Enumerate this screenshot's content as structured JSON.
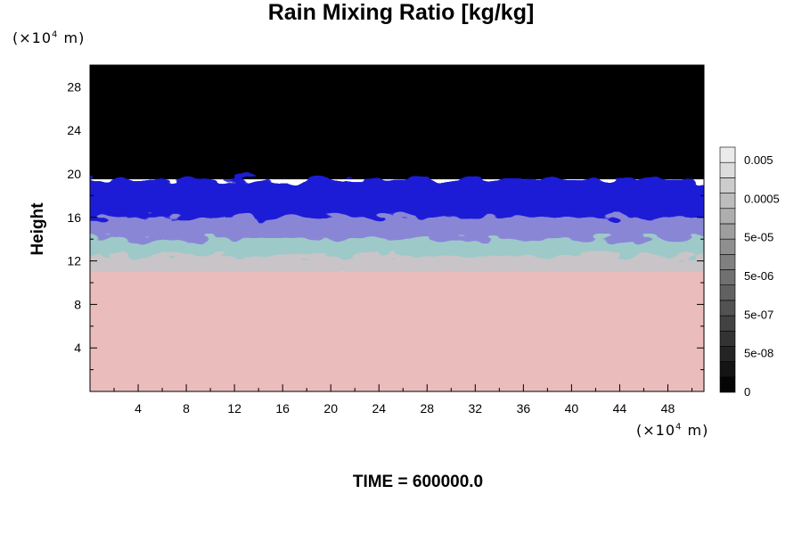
{
  "chart_data": {
    "type": "heatmap",
    "title": "Rain Mixing Ratio [kg/kg]",
    "xlabel": "",
    "ylabel": "Height",
    "x_unit": "(×10",
    "x_unit_exp": "4",
    "x_unit_tail": " m)",
    "y_unit": "(×10",
    "y_unit_exp": "4",
    "y_unit_tail": " m)",
    "xlim": [
      0,
      51
    ],
    "ylim": [
      0,
      30
    ],
    "xticks": [
      4,
      8,
      12,
      16,
      20,
      24,
      28,
      32,
      36,
      40,
      44,
      48
    ],
    "yticks": [
      4,
      8,
      12,
      16,
      20,
      24,
      28
    ],
    "colorbar": {
      "labels": [
        "0",
        "5e-08",
        "5e-07",
        "5e-06",
        "5e-05",
        "0.0005",
        "0.005"
      ],
      "levels": 16
    },
    "layers": [
      {
        "name": "upper",
        "y_from": 19.5,
        "y_to": 30,
        "color": "#000000"
      },
      {
        "name": "blue band",
        "y_from": 15.5,
        "y_to": 19.5,
        "color": "#1a1ad6"
      },
      {
        "name": "violet transition",
        "y_from": 13.5,
        "y_to": 16,
        "color": "#8a86d6"
      },
      {
        "name": "teal band",
        "y_from": 11.5,
        "y_to": 14,
        "color": "#9ec9c9"
      },
      {
        "name": "grey transition",
        "y_from": 10.5,
        "y_to": 12.5,
        "color": "#c9c4c7"
      },
      {
        "name": "lower",
        "y_from": 0,
        "y_to": 11,
        "color": "#ebbcbc"
      }
    ]
  },
  "footer": {
    "time_label": "TIME = 600000.0"
  }
}
